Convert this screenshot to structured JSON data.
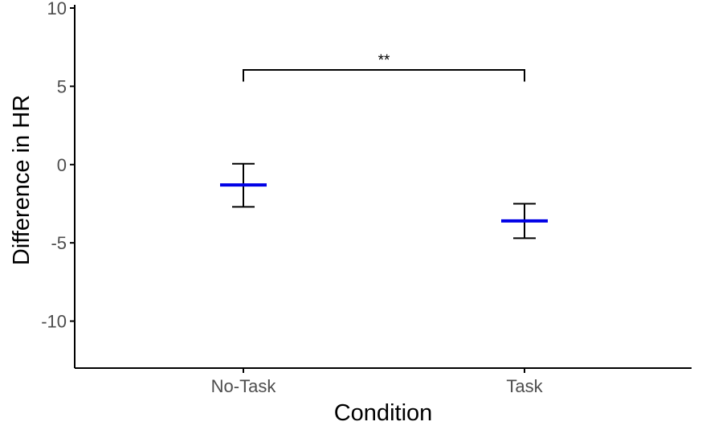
{
  "chart_data": {
    "type": "errorbar",
    "title": "",
    "xlabel": "Condition",
    "ylabel": "Difference in HR",
    "categories": [
      "No-Task",
      "Task"
    ],
    "series": [
      {
        "mean": [
          -1.3,
          -3.6
        ],
        "lower": [
          -2.7,
          -4.7
        ],
        "upper": [
          0.05,
          -2.5
        ]
      }
    ],
    "ylim": [
      -13,
      10
    ],
    "yticks": [
      10,
      5,
      0,
      -5,
      -10
    ],
    "ytick_labels": [
      "10",
      "5",
      "0",
      "-5",
      "-10"
    ],
    "grid": false,
    "legend": "none",
    "significance": {
      "from": "No-Task",
      "to": "Task",
      "y": 6.05,
      "drop_to": 5.3,
      "label": "**"
    },
    "colors": {
      "mean_line": "#0000e6",
      "error_bar": "#000000",
      "axis": "#000000"
    }
  }
}
